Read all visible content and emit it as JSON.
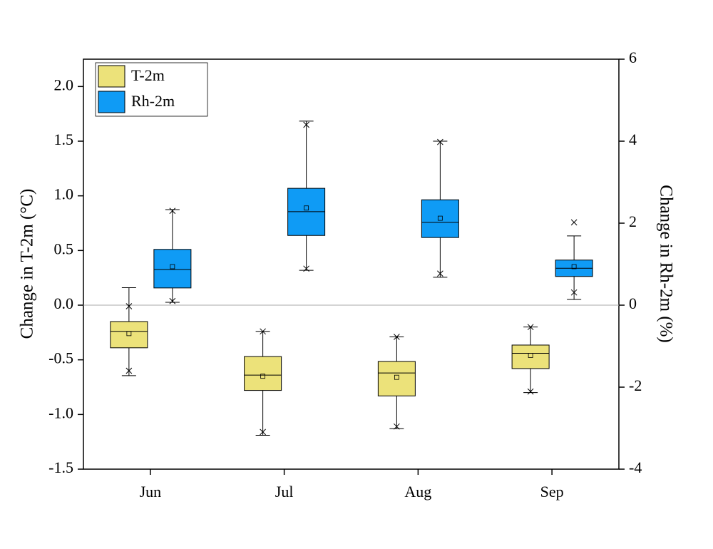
{
  "chart_data": {
    "type": "box",
    "categories": [
      "Jun",
      "Jul",
      "Aug",
      "Sep"
    ],
    "y_label": "Change in T-2m (°C)",
    "y2_label": "Change in Rh-2m (%)",
    "ylim": [
      -1.5,
      2.25
    ],
    "yticks": [
      -1.5,
      {
        "value": -1,
        "label": "-1.0"
      },
      -0.5,
      {
        "value": 0,
        "label": "0.0"
      },
      0.5,
      {
        "value": 1,
        "label": "1.0"
      },
      1.5,
      {
        "value": 2,
        "label": "2.0"
      }
    ],
    "y2lim": [
      -4,
      6
    ],
    "y2ticks": [
      -4,
      -2,
      0,
      2,
      4,
      6
    ],
    "reference_line": 0,
    "legend": "top-left",
    "series": [
      {
        "name": "T-2m",
        "color": "#ece27a",
        "axis": "y",
        "whisker_high": [
          0.16,
          -0.24,
          -0.29,
          -0.2
        ],
        "q3": [
          -0.15,
          -0.47,
          -0.515,
          -0.365
        ],
        "median": [
          -0.24,
          -0.64,
          -0.62,
          -0.44
        ],
        "mean": [
          -0.26,
          -0.65,
          -0.66,
          -0.46
        ],
        "q1": [
          -0.39,
          -0.78,
          -0.83,
          -0.58
        ],
        "whisker_low": [
          -0.645,
          -1.19,
          -1.13,
          -0.8
        ],
        "extremes": [
          [
            -0.01,
            -0.6
          ],
          [
            -0.24,
            -1.16
          ],
          [
            -0.29,
            -1.11
          ],
          [
            -0.2,
            -0.79
          ]
        ]
      },
      {
        "name": "Rh-2m",
        "color": "#0f9bf5",
        "axis": "y2",
        "whisker_high": [
          2.33,
          4.49,
          4.0,
          1.69
        ],
        "q3": [
          1.36,
          2.85,
          2.57,
          1.1
        ],
        "median": [
          0.87,
          2.28,
          2.02,
          0.9
        ],
        "mean": [
          0.94,
          2.37,
          2.12,
          0.94
        ],
        "q1": [
          0.42,
          1.7,
          1.65,
          0.7
        ],
        "whisker_low": [
          0.07,
          0.85,
          0.68,
          0.14
        ],
        "extremes": [
          [
            2.3,
            0.1
          ],
          [
            4.4,
            0.89
          ],
          [
            3.98,
            0.77
          ],
          [
            2.02,
            0.31
          ]
        ]
      }
    ]
  }
}
